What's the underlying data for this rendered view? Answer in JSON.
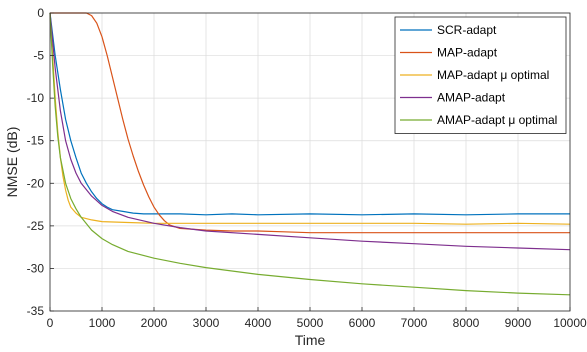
{
  "chart_data": {
    "type": "line",
    "title": "",
    "xlabel": "Time",
    "ylabel": "NMSE (dB)",
    "xlim": [
      0,
      10000
    ],
    "ylim": [
      -35,
      0
    ],
    "xticks": [
      0,
      1000,
      2000,
      3000,
      4000,
      5000,
      6000,
      7000,
      8000,
      9000,
      10000
    ],
    "yticks": [
      0,
      -5,
      -10,
      -15,
      -20,
      -25,
      -30,
      -35
    ],
    "grid": true,
    "legend_position": "top-right",
    "series": [
      {
        "name": "SCR-adapt",
        "color": "#0072BD",
        "x": [
          0,
          100,
          200,
          300,
          400,
          500,
          600,
          700,
          800,
          900,
          1000,
          1100,
          1200,
          1400,
          1600,
          1800,
          2000,
          2500,
          3000,
          3500,
          4000,
          5000,
          6000,
          7000,
          8000,
          9000,
          10000
        ],
        "y": [
          0,
          -5,
          -9,
          -12.5,
          -15,
          -17,
          -18.8,
          -20,
          -21,
          -21.8,
          -22.4,
          -22.8,
          -23.1,
          -23.3,
          -23.5,
          -23.6,
          -23.6,
          -23.6,
          -23.7,
          -23.6,
          -23.7,
          -23.6,
          -23.7,
          -23.6,
          -23.7,
          -23.6,
          -23.6
        ]
      },
      {
        "name": "MAP-adapt",
        "color": "#D95319",
        "x": [
          0,
          700,
          800,
          900,
          1000,
          1100,
          1200,
          1300,
          1400,
          1500,
          1600,
          1700,
          1800,
          1900,
          2000,
          2100,
          2200,
          2300,
          2500,
          3000,
          3500,
          4000,
          4500,
          5000,
          6000,
          7000,
          8000,
          9000,
          10000
        ],
        "y": [
          0,
          0,
          -0.3,
          -1.2,
          -2.8,
          -5,
          -7.5,
          -10,
          -12.5,
          -14.8,
          -16.8,
          -18.6,
          -20.2,
          -21.6,
          -22.8,
          -23.7,
          -24.4,
          -24.9,
          -25.3,
          -25.5,
          -25.6,
          -25.6,
          -25.7,
          -25.8,
          -25.8,
          -25.8,
          -25.8,
          -25.8,
          -25.8
        ]
      },
      {
        "name": "MAP-adapt μ optimal",
        "color": "#EDB120",
        "x": [
          0,
          50,
          100,
          150,
          200,
          250,
          300,
          350,
          400,
          500,
          600,
          800,
          1000,
          1500,
          2000,
          3000,
          4000,
          5000,
          6000,
          7000,
          8000,
          9000,
          10000
        ],
        "y": [
          0,
          -5,
          -10,
          -14,
          -17,
          -19.2,
          -20.8,
          -22,
          -22.8,
          -23.5,
          -24,
          -24.3,
          -24.5,
          -24.6,
          -24.7,
          -24.7,
          -24.7,
          -24.7,
          -24.7,
          -24.7,
          -24.8,
          -24.7,
          -24.8
        ]
      },
      {
        "name": "AMAP-adapt",
        "color": "#7E2F8E",
        "x": [
          0,
          100,
          200,
          300,
          400,
          500,
          600,
          800,
          1000,
          1200,
          1500,
          2000,
          2500,
          3000,
          4000,
          5000,
          6000,
          7000,
          8000,
          9000,
          10000
        ],
        "y": [
          0,
          -6.5,
          -11.5,
          -15,
          -17.2,
          -18.8,
          -20,
          -21.5,
          -22.6,
          -23.3,
          -24,
          -24.7,
          -25.2,
          -25.6,
          -26,
          -26.4,
          -26.8,
          -27.1,
          -27.4,
          -27.6,
          -27.8
        ]
      },
      {
        "name": "AMAP-adapt μ optimal",
        "color": "#77AC30",
        "x": [
          0,
          50,
          100,
          150,
          200,
          300,
          400,
          500,
          600,
          800,
          1000,
          1200,
          1500,
          2000,
          2500,
          3000,
          4000,
          5000,
          6000,
          7000,
          8000,
          9000,
          10000
        ],
        "y": [
          0,
          -6,
          -11,
          -14.5,
          -17,
          -20,
          -21.8,
          -23,
          -24,
          -25.5,
          -26.5,
          -27.2,
          -28,
          -28.8,
          -29.4,
          -29.9,
          -30.7,
          -31.3,
          -31.8,
          -32.2,
          -32.6,
          -32.9,
          -33.1
        ]
      }
    ]
  }
}
